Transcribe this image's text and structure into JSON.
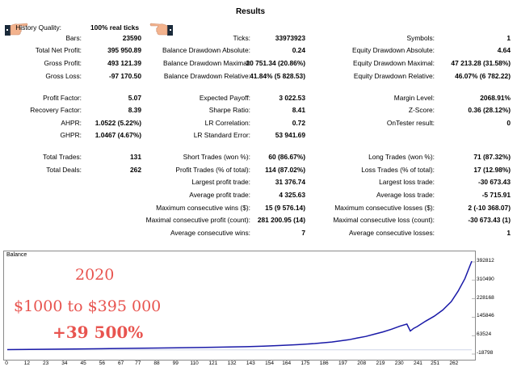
{
  "title": "Results",
  "history": {
    "label": "History Quality:",
    "value": "100% real ticks"
  },
  "stats": [
    {
      "label": "Bars:",
      "value": "23590"
    },
    {
      "label": "Total Net Profit:",
      "value": "395 950.89"
    },
    {
      "label": "Gross Profit:",
      "value": "493 121.39"
    },
    {
      "label": "Gross Loss:",
      "value": "-97 170.50"
    },
    {
      "label": "Ticks:",
      "value": "33973923"
    },
    {
      "label": "Balance Drawdown Absolute:",
      "value": "0.24"
    },
    {
      "label": "Balance Drawdown Maximal:",
      "value": "30 751.34 (20.86%)"
    },
    {
      "label": "Balance Drawdown Relative:",
      "value": "41.84% (5 828.53)"
    },
    {
      "label": "Symbols:",
      "value": "1"
    },
    {
      "label": "Equity Drawdown Absolute:",
      "value": "4.64"
    },
    {
      "label": "Equity Drawdown Maximal:",
      "value": "47 213.28 (31.58%)"
    },
    {
      "label": "Equity Drawdown Relative:",
      "value": "46.07% (6 782.22)"
    },
    {
      "label": "Profit Factor:",
      "value": "5.07"
    },
    {
      "label": "Recovery Factor:",
      "value": "8.39"
    },
    {
      "label": "AHPR:",
      "value": "1.0522 (5.22%)"
    },
    {
      "label": "GHPR:",
      "value": "1.0467 (4.67%)"
    },
    {
      "label": "Expected Payoff:",
      "value": "3 022.53"
    },
    {
      "label": "Sharpe Ratio:",
      "value": "8.41"
    },
    {
      "label": "LR Correlation:",
      "value": "0.72"
    },
    {
      "label": "LR Standard Error:",
      "value": "53 941.69"
    },
    {
      "label": "Margin Level:",
      "value": "2068.91%"
    },
    {
      "label": "Z-Score:",
      "value": "0.36 (28.12%)"
    },
    {
      "label": "OnTester result:",
      "value": "0"
    },
    {
      "label": "Total Trades:",
      "value": "131"
    },
    {
      "label": "Total Deals:",
      "value": "262"
    },
    {
      "label": "Short Trades (won %):",
      "value": "60 (86.67%)"
    },
    {
      "label": "Profit Trades (% of total):",
      "value": "114 (87.02%)"
    },
    {
      "label": "Largest profit trade:",
      "value": "31 376.74"
    },
    {
      "label": "Average profit trade:",
      "value": "4 325.63"
    },
    {
      "label": "Maximum consecutive wins ($):",
      "value": "15 (9 576.14)"
    },
    {
      "label": "Maximal consecutive profit (count):",
      "value": "281 200.95 (14)"
    },
    {
      "label": "Average consecutive wins:",
      "value": "7"
    },
    {
      "label": "Long Trades (won %):",
      "value": "71 (87.32%)"
    },
    {
      "label": "Loss Trades (% of total):",
      "value": "17 (12.98%)"
    },
    {
      "label": "Largest loss trade:",
      "value": "-30 673.43"
    },
    {
      "label": "Average loss trade:",
      "value": "-5 715.91"
    },
    {
      "label": "Maximum consecutive losses ($):",
      "value": "2 (-10 368.07)"
    },
    {
      "label": "Maximal consecutive loss (count):",
      "value": "-30 673.43 (1)"
    },
    {
      "label": "Average consecutive losses:",
      "value": "1"
    }
  ],
  "overlay": {
    "year": "2020",
    "growth": "$1000 to $395 000",
    "percent": "+39 500%"
  },
  "chart_data": {
    "type": "line",
    "title": "Balance",
    "color": "#1a1aa8",
    "ylim": [
      -18798,
      392812
    ],
    "yticks": [
      "392812",
      "310490",
      "228168",
      "145846",
      "63524",
      "-18798"
    ],
    "xticks": [
      "0",
      "12",
      "23",
      "34",
      "45",
      "56",
      "67",
      "77",
      "88",
      "99",
      "110",
      "121",
      "132",
      "143",
      "154",
      "164",
      "175",
      "186",
      "197",
      "208",
      "219",
      "230",
      "241",
      "251",
      "262"
    ],
    "xmax": 272,
    "x": [
      0,
      20,
      40,
      60,
      80,
      100,
      120,
      140,
      150,
      160,
      170,
      180,
      190,
      200,
      205,
      210,
      215,
      220,
      225,
      230,
      234,
      236,
      238,
      240,
      245,
      250,
      255,
      260,
      264,
      268,
      272
    ],
    "y": [
      1000,
      2500,
      4000,
      5500,
      7500,
      9500,
      11500,
      14000,
      16500,
      19500,
      23000,
      28000,
      35000,
      45000,
      53000,
      60000,
      70000,
      80000,
      92000,
      106000,
      115000,
      84000,
      96000,
      104000,
      128000,
      150000,
      178000,
      215000,
      262000,
      318000,
      395950
    ]
  }
}
